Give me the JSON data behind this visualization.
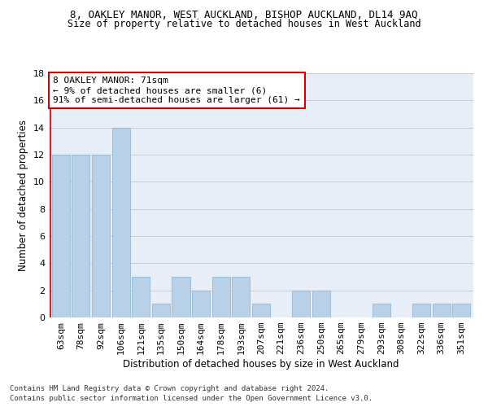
{
  "title": "8, OAKLEY MANOR, WEST AUCKLAND, BISHOP AUCKLAND, DL14 9AQ",
  "subtitle": "Size of property relative to detached houses in West Auckland",
  "xlabel": "Distribution of detached houses by size in West Auckland",
  "ylabel": "Number of detached properties",
  "footnote1": "Contains HM Land Registry data © Crown copyright and database right 2024.",
  "footnote2": "Contains public sector information licensed under the Open Government Licence v3.0.",
  "annotation_line1": "8 OAKLEY MANOR: 71sqm",
  "annotation_line2": "← 9% of detached houses are smaller (6)",
  "annotation_line3": "91% of semi-detached houses are larger (61) →",
  "categories": [
    "63sqm",
    "78sqm",
    "92sqm",
    "106sqm",
    "121sqm",
    "135sqm",
    "150sqm",
    "164sqm",
    "178sqm",
    "193sqm",
    "207sqm",
    "221sqm",
    "236sqm",
    "250sqm",
    "265sqm",
    "279sqm",
    "293sqm",
    "308sqm",
    "322sqm",
    "336sqm",
    "351sqm"
  ],
  "values": [
    12,
    12,
    12,
    14,
    3,
    1,
    3,
    2,
    3,
    3,
    1,
    0,
    2,
    2,
    0,
    0,
    1,
    0,
    1,
    1,
    1
  ],
  "bar_color": "#b8d0e8",
  "bar_edge_color": "#8ab0d0",
  "annotation_box_facecolor": "#ffffff",
  "annotation_box_edgecolor": "#cc0000",
  "red_line_color": "#cc0000",
  "background_color": "#e8eef8",
  "grid_color": "#cccccc",
  "ylim": [
    0,
    18
  ],
  "yticks": [
    0,
    2,
    4,
    6,
    8,
    10,
    12,
    14,
    16,
    18
  ],
  "title_fontsize": 9,
  "subtitle_fontsize": 8.5,
  "ylabel_fontsize": 8.5,
  "xlabel_fontsize": 8.5,
  "tick_fontsize": 8,
  "annotation_fontsize": 8,
  "footnote_fontsize": 6.5
}
